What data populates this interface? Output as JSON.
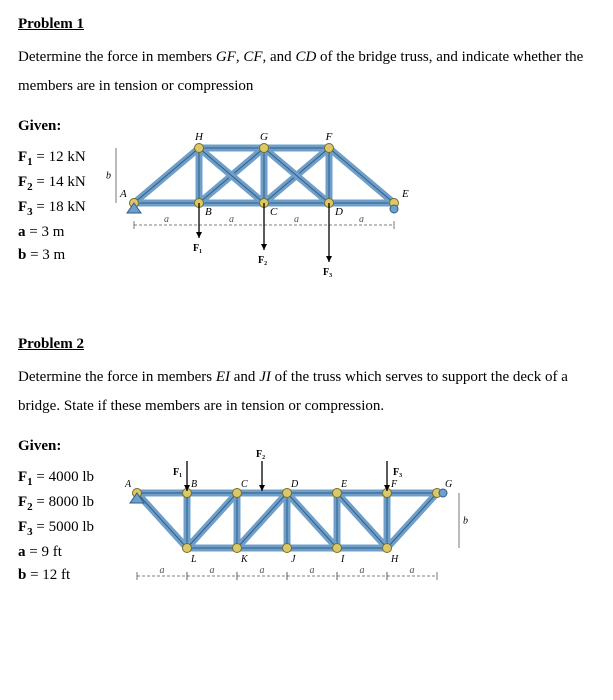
{
  "p1": {
    "heading": "Problem 1",
    "desc_pre": "Determine the force in members ",
    "m1": "GF",
    "sep1": ", ",
    "m2": "CF",
    "sep2": ", and ",
    "m3": "CD",
    "desc_post": " of the bridge truss, and indicate whether the members are in tension or compression",
    "given_label": "Given:",
    "given": [
      {
        "lhs": "F",
        "sub": "1",
        "rhs": " = 12 kN"
      },
      {
        "lhs": "F",
        "sub": "2",
        "rhs": " = 14 kN"
      },
      {
        "lhs": "F",
        "sub": "3",
        "rhs": " = 18 kN"
      },
      {
        "lhs": "a",
        "sub": "",
        "rhs": " = 3 m"
      },
      {
        "lhs": "b",
        "sub": "",
        "rhs": " = 3 m"
      }
    ],
    "fig": {
      "truss_fill": "#6f9fc9",
      "truss_stroke": "#2e5e8a",
      "joint_fill": "#d9c96a",
      "joint_stroke": "#7a6a20",
      "dim_color": "#555555",
      "label_color": "#000000",
      "bg": "#ffffff",
      "topLabels": [
        "H",
        "G",
        "F"
      ],
      "botLabels": [
        "B",
        "C",
        "D"
      ],
      "leftLabel": "A",
      "rightLabel": "E",
      "dimLetter": "a",
      "heightLetter": "b",
      "forces": [
        "F₁",
        "F₂",
        "F₃"
      ]
    }
  },
  "p2": {
    "heading": "Problem 2",
    "desc_pre": "Determine the force in members ",
    "m1": "EI",
    "sep1": " and ",
    "m2": "JI",
    "desc_post": " of the truss which serves to support the deck of a bridge. State if these members are in tension or compression.",
    "given_label": "Given:",
    "given": [
      {
        "lhs": "F",
        "sub": "1",
        "rhs": " = 4000 lb"
      },
      {
        "lhs": "F",
        "sub": "2",
        "rhs": " = 8000 lb"
      },
      {
        "lhs": "F",
        "sub": "3",
        "rhs": " = 5000 lb"
      },
      {
        "lhs": "a",
        "sub": "",
        "rhs": " = 9 ft"
      },
      {
        "lhs": "b",
        "sub": "",
        "rhs": " = 12 ft"
      }
    ],
    "fig": {
      "truss_fill": "#6f9fc9",
      "truss_stroke": "#2e5e8a",
      "joint_fill": "#d9c96a",
      "joint_stroke": "#7a6a20",
      "dim_color": "#555555",
      "label_color": "#000000",
      "bg": "#ffffff",
      "topLabels": [
        "A",
        "B",
        "C",
        "D",
        "E",
        "F",
        "G"
      ],
      "botLabels": [
        "L",
        "K",
        "J",
        "I",
        "H"
      ],
      "dimLetter": "a",
      "heightLetter": "b",
      "forces": [
        "F₁",
        "F₂",
        "F₃"
      ]
    }
  }
}
